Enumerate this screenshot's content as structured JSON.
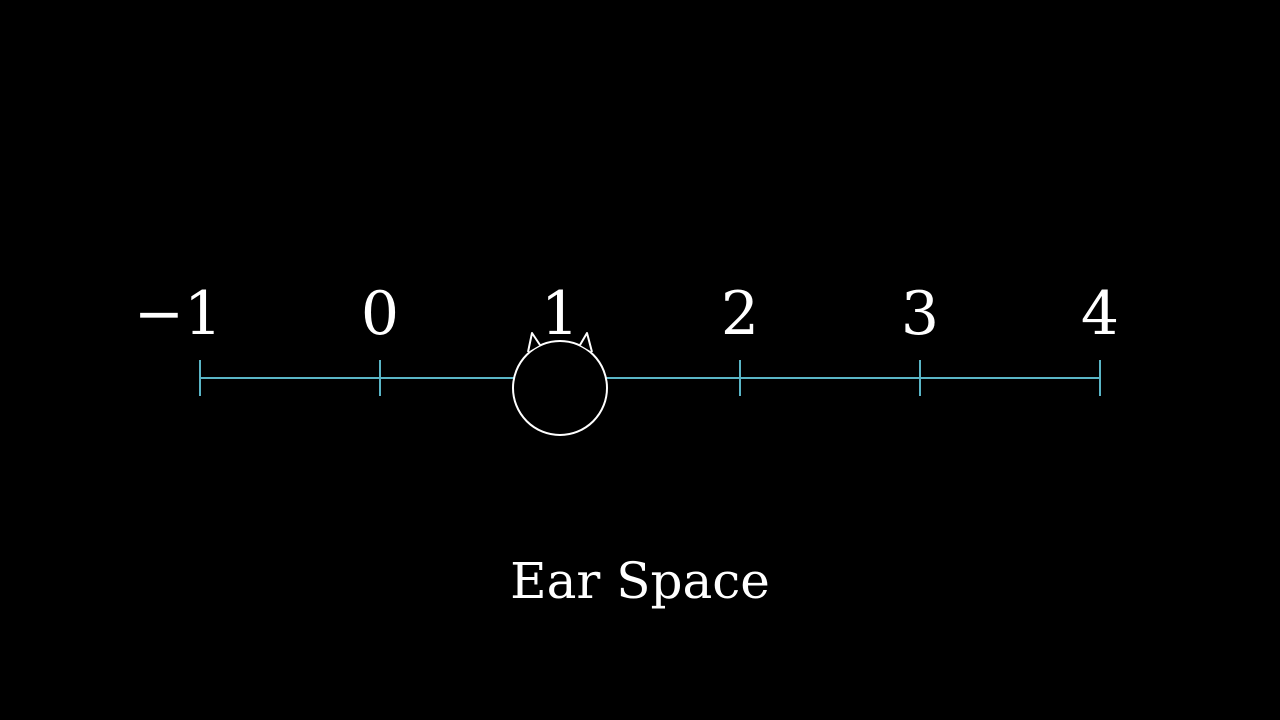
{
  "diagram": {
    "caption": "Ear Space",
    "number_line": {
      "min": -1,
      "max": 4,
      "ticks": [
        {
          "value": -1,
          "label": "−1"
        },
        {
          "value": 0,
          "label": "0"
        },
        {
          "value": 1,
          "label": "1"
        },
        {
          "value": 2,
          "label": "2"
        },
        {
          "value": 3,
          "label": "3"
        },
        {
          "value": 4,
          "label": "4"
        }
      ]
    },
    "marker": {
      "value": 1,
      "shape": "head-with-ears"
    },
    "colors": {
      "background": "#000000",
      "axis": "#5ab5c6",
      "text": "#ffffff",
      "marker_stroke": "#ffffff"
    }
  }
}
